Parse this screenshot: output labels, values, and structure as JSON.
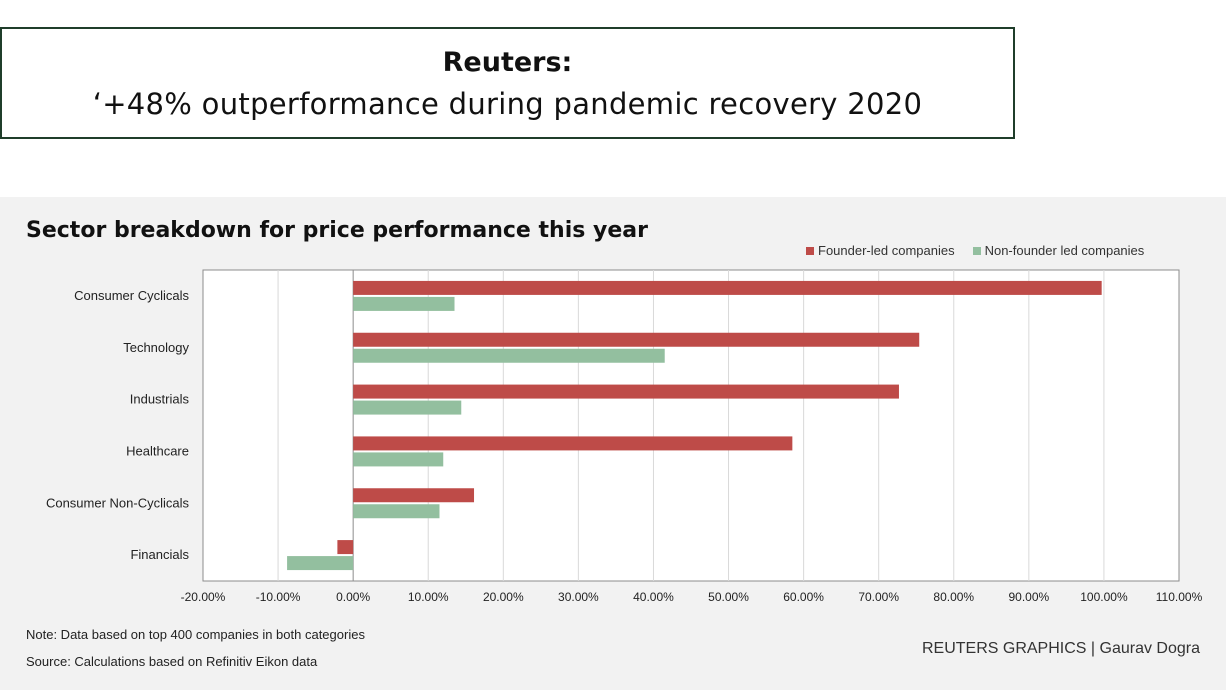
{
  "banner": {
    "title": "Reuters:",
    "subtitle": "‘+48% outperformance during pandemic recovery 2020"
  },
  "colors": {
    "founder": "#be4b48",
    "nonfounder": "#93bf9f",
    "grid": "#d9d9d9",
    "axis": "#8c8c8c"
  },
  "chart_data": {
    "type": "bar",
    "orientation": "horizontal",
    "title": "Sector breakdown for price performance this year",
    "categories": [
      "Consumer Cyclicals",
      "Technology",
      "Industrials",
      "Healthcare",
      "Consumer Non-Cyclicals",
      "Financials"
    ],
    "series": [
      {
        "name": "Founder-led companies",
        "values": [
          99.7,
          75.4,
          72.7,
          58.5,
          16.1,
          -2.1
        ]
      },
      {
        "name": "Non-founder led companies",
        "values": [
          13.5,
          41.5,
          14.4,
          12.0,
          11.5,
          -8.8
        ]
      }
    ],
    "xlim": [
      -20,
      110
    ],
    "xticks": [
      "-20.00%",
      "-10.00%",
      "0.00%",
      "10.00%",
      "20.00%",
      "30.00%",
      "40.00%",
      "50.00%",
      "60.00%",
      "70.00%",
      "80.00%",
      "90.00%",
      "100.00%",
      "110.00%"
    ],
    "grid": true,
    "legend_position": "top-right"
  },
  "footer": {
    "note": "Note: Data based on top 400 companies in both categories",
    "source": "Source: Calculations based on Refinitiv Eikon data",
    "credit": "REUTERS GRAPHICS | Gaurav Dogra"
  }
}
